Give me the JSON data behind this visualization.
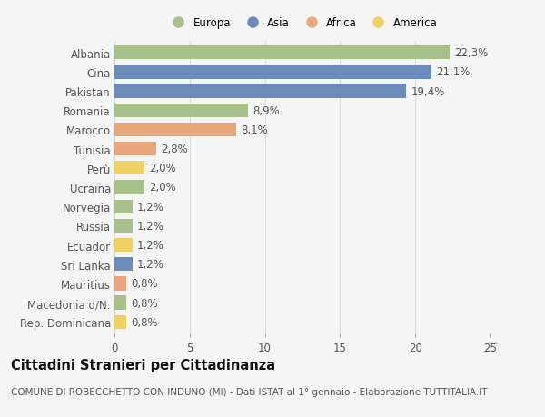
{
  "categories": [
    "Albania",
    "Cina",
    "Pakistan",
    "Romania",
    "Marocco",
    "Tunisia",
    "Perù",
    "Ucraina",
    "Norvegia",
    "Russia",
    "Ecuador",
    "Sri Lanka",
    "Mauritius",
    "Macedonia d/N.",
    "Rep. Dominicana"
  ],
  "values": [
    22.3,
    21.1,
    19.4,
    8.9,
    8.1,
    2.8,
    2.0,
    2.0,
    1.2,
    1.2,
    1.2,
    1.2,
    0.8,
    0.8,
    0.8
  ],
  "labels": [
    "22,3%",
    "21,1%",
    "19,4%",
    "8,9%",
    "8,1%",
    "2,8%",
    "2,0%",
    "2,0%",
    "1,2%",
    "1,2%",
    "1,2%",
    "1,2%",
    "0,8%",
    "0,8%",
    "0,8%"
  ],
  "continents": [
    "Europa",
    "Asia",
    "Asia",
    "Europa",
    "Africa",
    "Africa",
    "America",
    "Europa",
    "Europa",
    "Europa",
    "America",
    "Asia",
    "Africa",
    "Europa",
    "America"
  ],
  "continent_colors": {
    "Europa": "#a8c08a",
    "Asia": "#6b8cba",
    "Africa": "#e8a87c",
    "America": "#f0d060"
  },
  "legend_order": [
    "Europa",
    "Asia",
    "Africa",
    "America"
  ],
  "title": "Cittadini Stranieri per Cittadinanza",
  "subtitle": "COMUNE DI ROBECCHETTO CON INDUNO (MI) - Dati ISTAT al 1° gennaio - Elaborazione TUTTITALIA.IT",
  "xlim": [
    0,
    25
  ],
  "xticks": [
    0,
    5,
    10,
    15,
    20,
    25
  ],
  "background_color": "#f5f5f5",
  "bar_height": 0.72,
  "grid_color": "#dddddd",
  "text_color": "#555555",
  "label_fontsize": 8.5,
  "tick_fontsize": 8.5,
  "title_fontsize": 10.5,
  "subtitle_fontsize": 7.5
}
